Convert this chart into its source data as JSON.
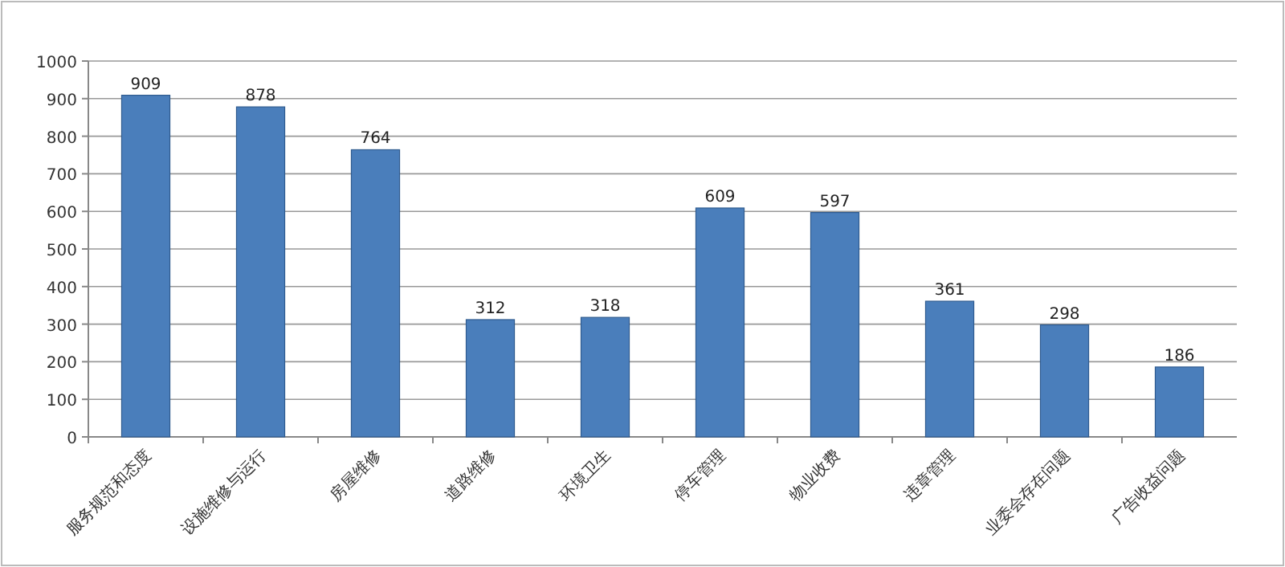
{
  "chart_data": {
    "type": "bar",
    "categories": [
      "服务规范和态度",
      "设施维修与运行",
      "房屋维修",
      "道路维修",
      "环境卫生",
      "停车管理",
      "物业收费",
      "违章管理",
      "业委会存在问题",
      "广告收益问题"
    ],
    "values": [
      909,
      878,
      764,
      312,
      318,
      609,
      597,
      361,
      298,
      186
    ],
    "color": "#4a7ebb",
    "ylim": [
      0,
      1000
    ],
    "yticks": [
      0,
      100,
      200,
      300,
      400,
      500,
      600,
      700,
      800,
      900,
      1000
    ],
    "grid": "y",
    "data_labels": true
  }
}
